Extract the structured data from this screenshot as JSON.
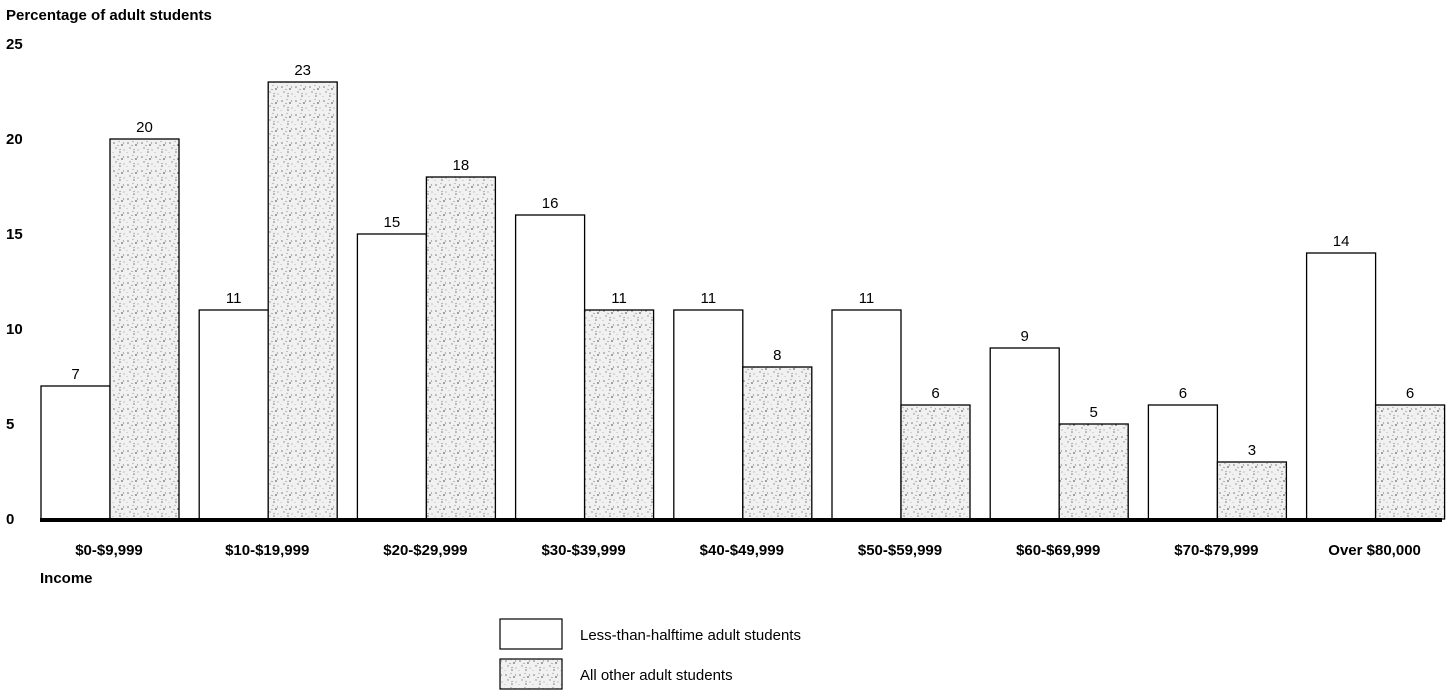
{
  "chart_data": {
    "type": "bar",
    "ylabel": "Percentage of adult students",
    "xlabel": "Income",
    "ylim": [
      0,
      25
    ],
    "yticks": [
      0,
      5,
      10,
      15,
      20,
      25
    ],
    "grid": false,
    "legend_position": "bottom-center",
    "categories": [
      "$0-$9,999",
      "$10-$19,999",
      "$20-$29,999",
      "$30-$39,999",
      "$40-$49,999",
      "$50-$59,999",
      "$60-$69,999",
      "$70-$79,999",
      "Over $80,000"
    ],
    "series": [
      {
        "name": "Less-than-halftime adult students",
        "values": [
          7,
          11,
          15,
          16,
          11,
          11,
          9,
          6,
          14
        ],
        "fill": "#ffffff",
        "pattern": "none"
      },
      {
        "name": "All other adult students",
        "values": [
          20,
          23,
          18,
          11,
          8,
          6,
          5,
          3,
          6
        ],
        "fill": "#e8e8e8",
        "pattern": "stipple"
      }
    ]
  }
}
